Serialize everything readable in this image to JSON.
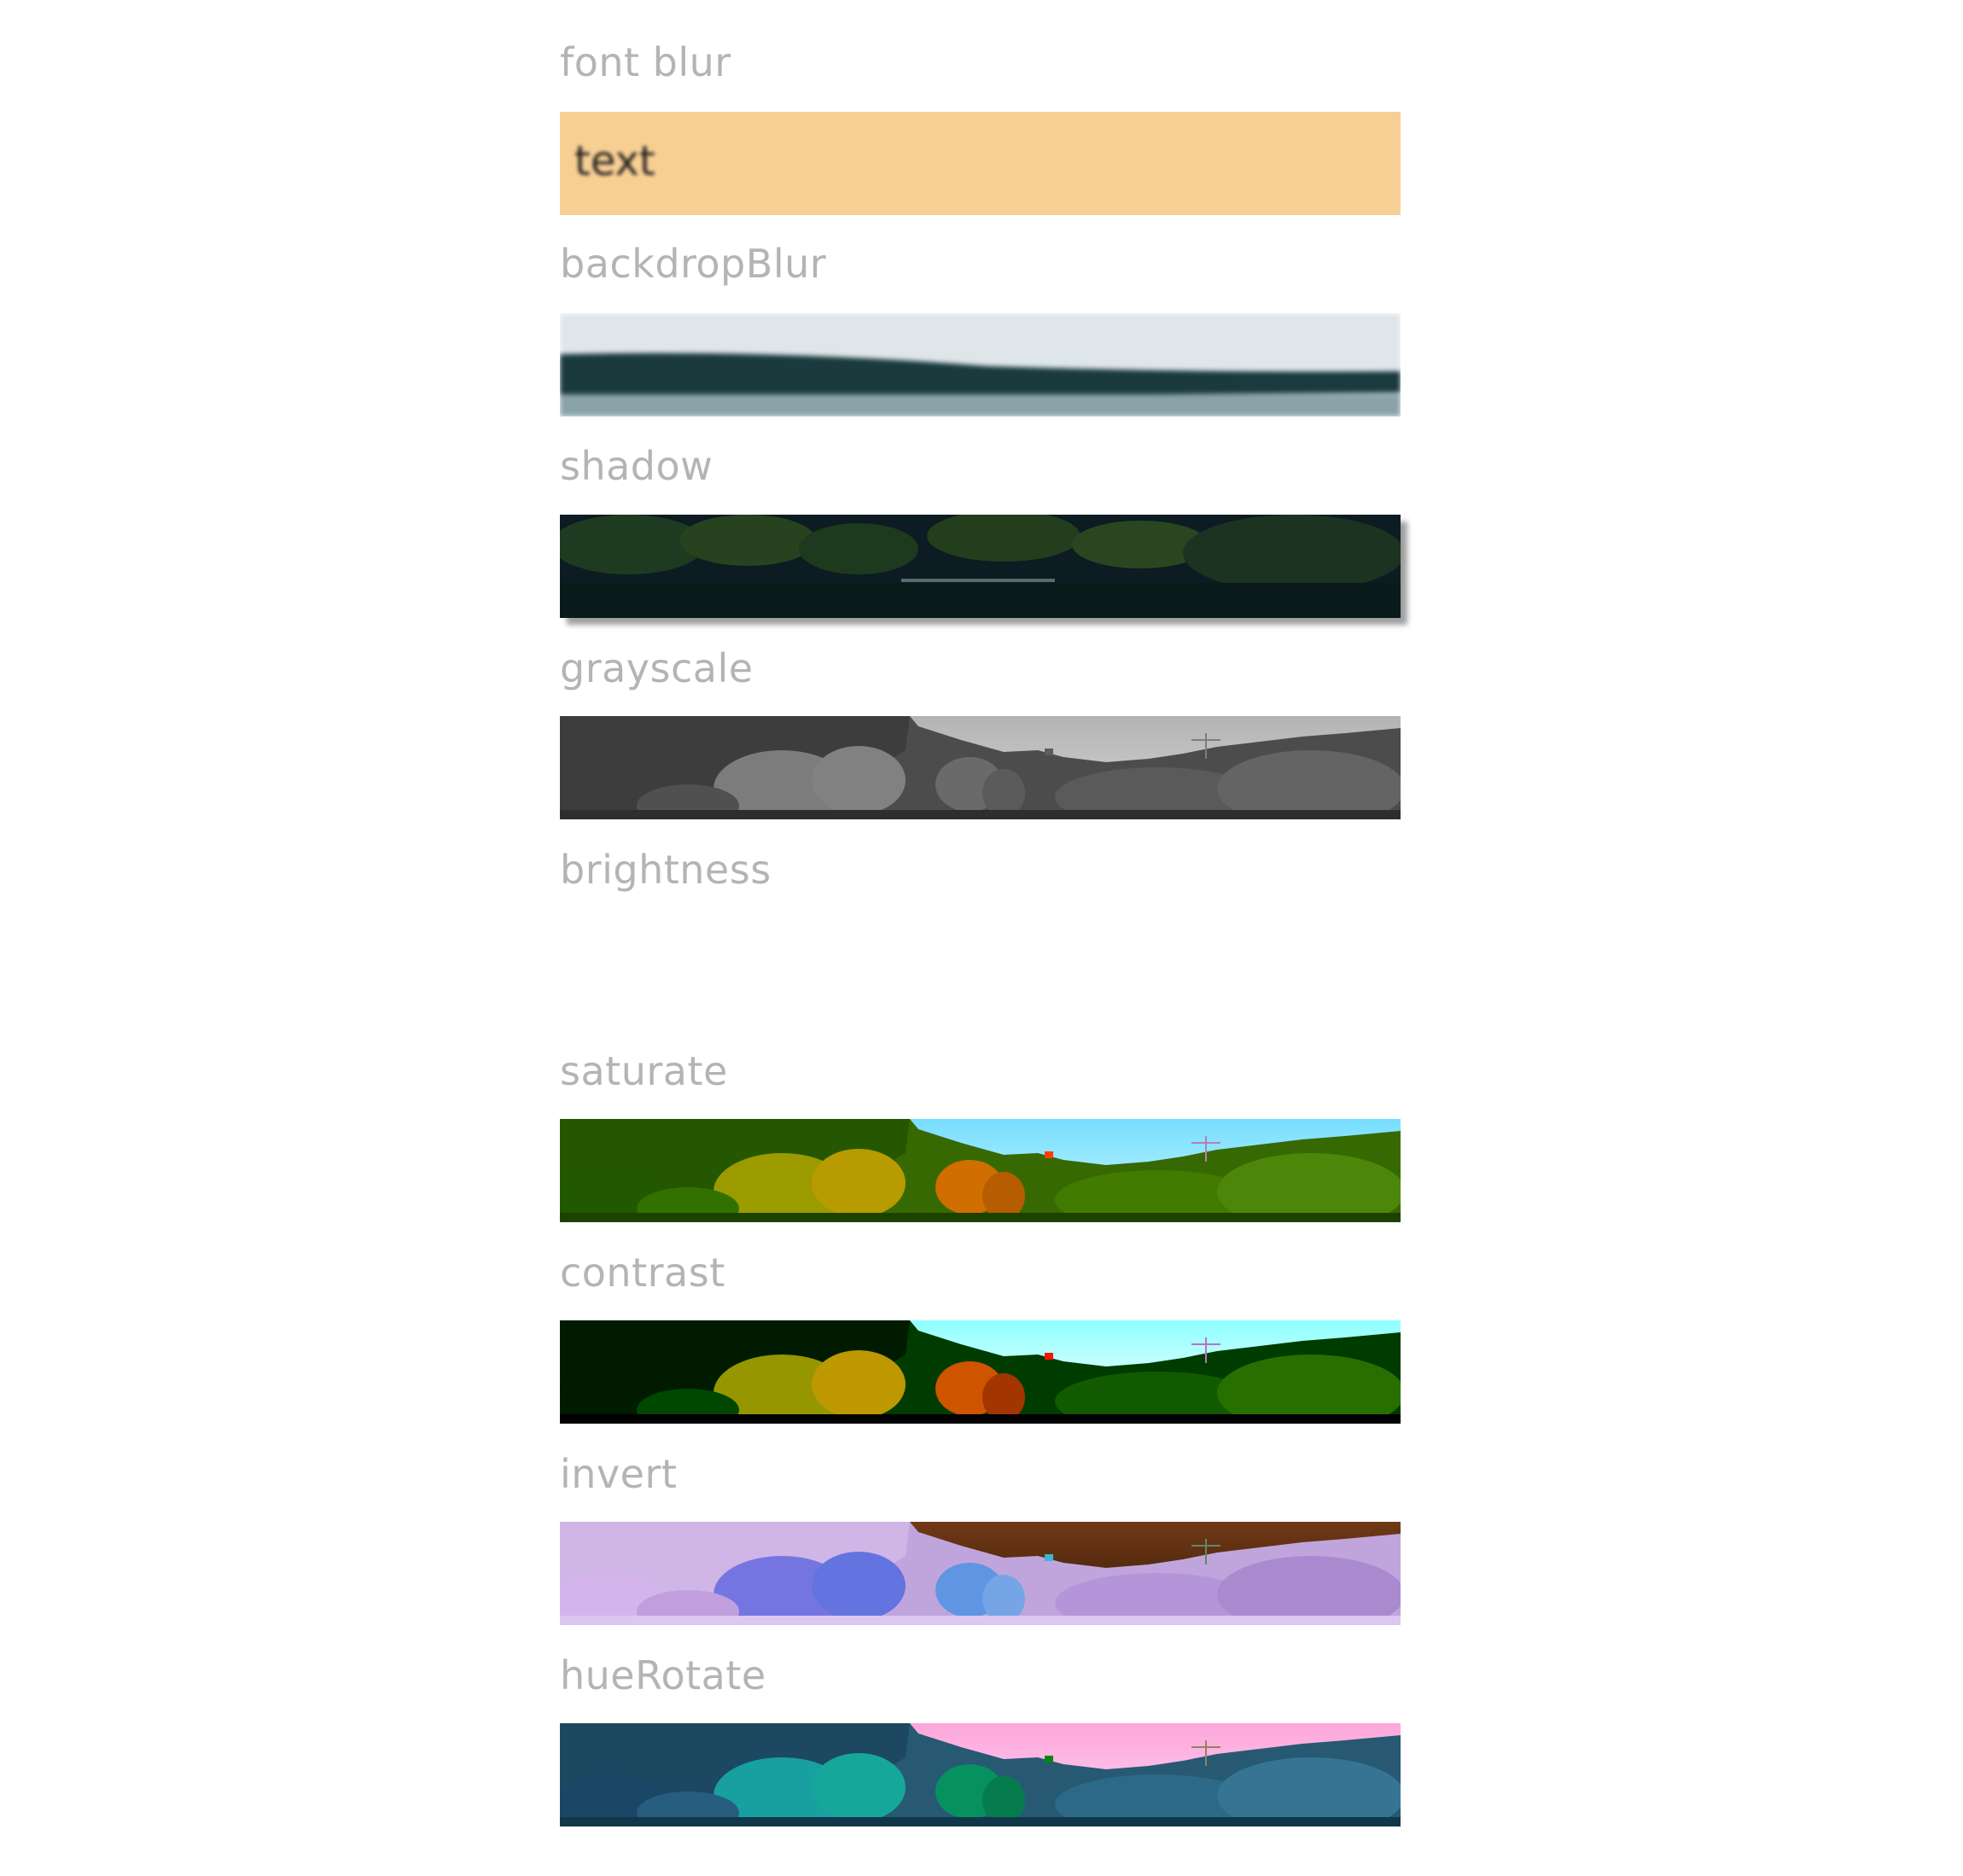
{
  "sections": [
    {
      "label": "font blur",
      "sample_text": "text",
      "color": "#f8cf93"
    },
    {
      "label": "backdropBlur"
    },
    {
      "label": "shadow"
    },
    {
      "label": "grayscale"
    },
    {
      "label": "brightness"
    },
    {
      "label": "saturate"
    },
    {
      "label": "contrast"
    },
    {
      "label": "invert"
    },
    {
      "label": "hueRotate"
    }
  ]
}
